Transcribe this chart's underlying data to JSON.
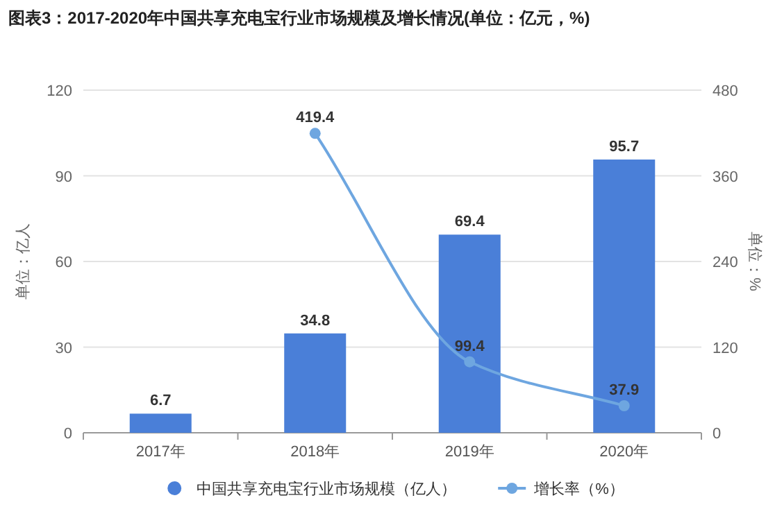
{
  "chart_data": {
    "type": "bar",
    "title": "图表3：2017-2020年中国共享充电宝行业市场规模及增长情况(单位：亿元，%)",
    "ylabel": "单位：亿人",
    "y2label": "单位：%",
    "categories": [
      "2017年",
      "2018年",
      "2019年",
      "2020年"
    ],
    "series": [
      {
        "name": "中国共享充电宝行业市场规模（亿人）",
        "color": "#4a7fd8",
        "values": [
          6.7,
          34.8,
          69.4,
          95.7
        ]
      },
      {
        "name": "增长率（%）",
        "type": "line",
        "axis": "y2",
        "color": "#6ea6e0",
        "marker": "circle",
        "values": [
          null,
          419.4,
          99.4,
          37.9
        ]
      }
    ],
    "ylim": [
      0,
      120
    ],
    "yticks": [
      0,
      30,
      60,
      90,
      120
    ],
    "y2lim": [
      0,
      480
    ],
    "y2ticks": [
      0,
      120,
      240,
      360,
      480
    ],
    "grid": "y",
    "legend": "bottom",
    "data_labels": true
  }
}
